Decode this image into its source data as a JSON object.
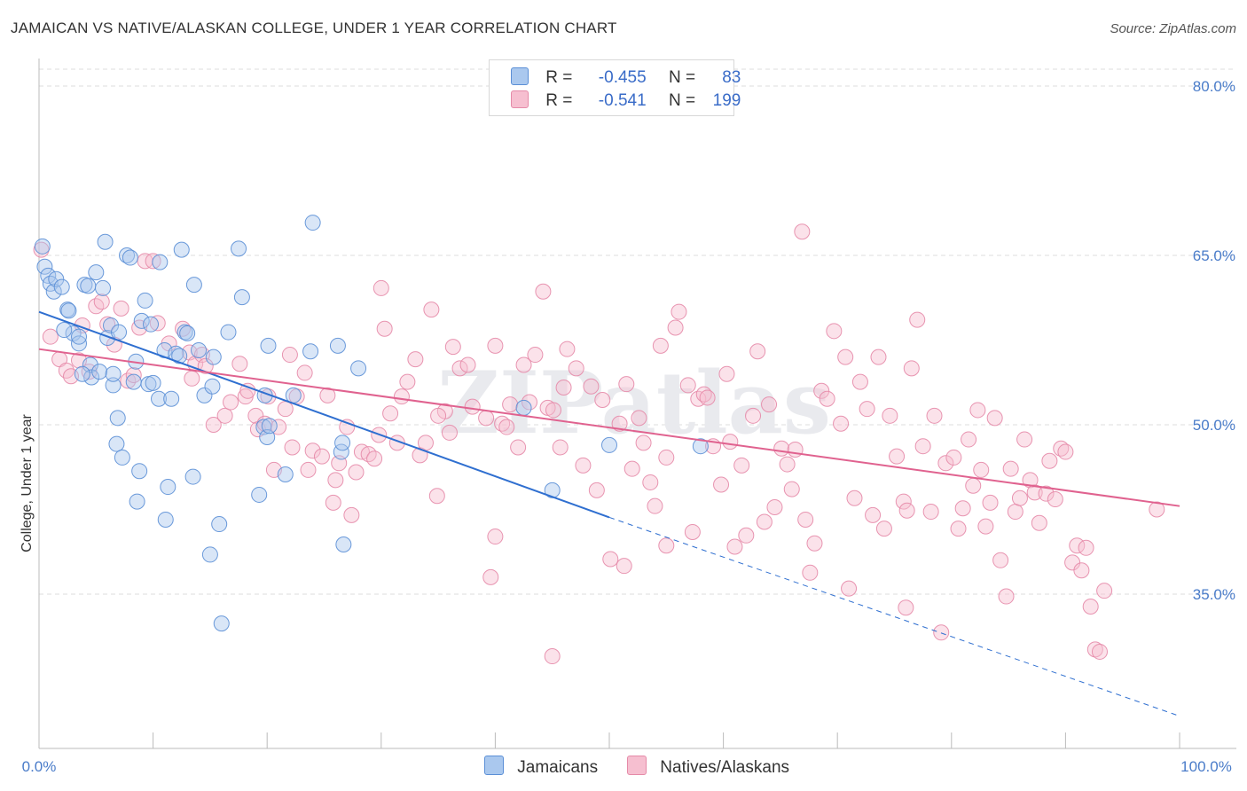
{
  "title": "JAMAICAN VS NATIVE/ALASKAN COLLEGE, UNDER 1 YEAR CORRELATION CHART",
  "source": "Source: ZipAtlas.com",
  "watermark": "ZIPatlas",
  "legend": {
    "rows": [
      {
        "r_label": "R =",
        "r_value": "-0.455",
        "n_label": "N =",
        "n_value": "83",
        "color": "#aac8ee",
        "edge": "#5b8fd6"
      },
      {
        "r_label": "R =",
        "r_value": "-0.541",
        "n_label": "N =",
        "n_value": "199",
        "color": "#f6bfd0",
        "edge": "#e58aa8"
      }
    ]
  },
  "bottom_legend": {
    "items": [
      {
        "label": "Jamaicans",
        "color": "#aac8ee",
        "edge": "#5b8fd6"
      },
      {
        "label": "Natives/Alaskans",
        "color": "#f6bfd0",
        "edge": "#e58aa8"
      }
    ]
  },
  "chart_data": {
    "type": "scatter",
    "title": "JAMAICAN VS NATIVE/ALASKAN COLLEGE, UNDER 1 YEAR CORRELATION CHART",
    "xlabel": "",
    "ylabel": "College, Under 1 year",
    "xlim": [
      0,
      100
    ],
    "ylim": [
      20,
      85
    ],
    "x_tick_labels": [
      "0.0%",
      "100.0%"
    ],
    "y_ticks": [
      35,
      50,
      65,
      80
    ],
    "y_tick_labels": [
      "35.0%",
      "50.0%",
      "65.0%",
      "80.0%"
    ],
    "grid": true,
    "legend_position": "top-center",
    "series": [
      {
        "name": "Jamaicans",
        "color": "#5b8fd6",
        "fill": "#aac8ee",
        "R": -0.455,
        "N": 83,
        "trend": {
          "x0": 0,
          "y0": 60.0,
          "x1": 50,
          "y1": 41.8,
          "dash_to_x": 100,
          "dash_to_y": 24.2
        },
        "points": [
          [
            0.3,
            65.8
          ],
          [
            0.5,
            64.0
          ],
          [
            0.8,
            63.2
          ],
          [
            1.0,
            62.5
          ],
          [
            1.3,
            61.8
          ],
          [
            1.5,
            62.9
          ],
          [
            2.0,
            62.2
          ],
          [
            2.5,
            60.2
          ],
          [
            2.6,
            60.1
          ],
          [
            3.0,
            58.1
          ],
          [
            3.5,
            57.2
          ],
          [
            3.5,
            57.8
          ],
          [
            4.0,
            62.4
          ],
          [
            4.3,
            62.3
          ],
          [
            4.5,
            55.3
          ],
          [
            4.6,
            54.2
          ],
          [
            5.0,
            63.5
          ],
          [
            5.3,
            54.7
          ],
          [
            5.6,
            62.1
          ],
          [
            5.8,
            66.2
          ],
          [
            6.0,
            57.7
          ],
          [
            6.3,
            58.8
          ],
          [
            6.5,
            53.5
          ],
          [
            6.5,
            54.5
          ],
          [
            6.8,
            48.3
          ],
          [
            7.0,
            58.2
          ],
          [
            7.3,
            47.1
          ],
          [
            7.7,
            65.0
          ],
          [
            8.0,
            64.8
          ],
          [
            8.3,
            53.8
          ],
          [
            8.5,
            55.6
          ],
          [
            8.6,
            43.2
          ],
          [
            8.8,
            45.9
          ],
          [
            9.0,
            59.2
          ],
          [
            9.3,
            61.0
          ],
          [
            9.6,
            53.6
          ],
          [
            10.0,
            53.7
          ],
          [
            10.5,
            52.3
          ],
          [
            10.6,
            64.4
          ],
          [
            11.0,
            56.6
          ],
          [
            11.1,
            41.6
          ],
          [
            11.3,
            44.5
          ],
          [
            11.6,
            52.3
          ],
          [
            12.0,
            56.3
          ],
          [
            12.3,
            56.1
          ],
          [
            12.5,
            65.5
          ],
          [
            12.8,
            58.2
          ],
          [
            13.0,
            58.1
          ],
          [
            13.5,
            45.4
          ],
          [
            13.6,
            62.4
          ],
          [
            14.0,
            56.6
          ],
          [
            14.5,
            52.6
          ],
          [
            15.0,
            38.5
          ],
          [
            15.2,
            53.4
          ],
          [
            15.3,
            56.0
          ],
          [
            15.8,
            41.2
          ],
          [
            16.0,
            32.4
          ],
          [
            16.6,
            58.2
          ],
          [
            17.5,
            65.6
          ],
          [
            17.8,
            61.3
          ],
          [
            19.3,
            43.8
          ],
          [
            19.7,
            49.8
          ],
          [
            19.8,
            52.6
          ],
          [
            20.0,
            48.9
          ],
          [
            20.1,
            57.0
          ],
          [
            20.2,
            49.9
          ],
          [
            21.6,
            45.6
          ],
          [
            22.3,
            52.6
          ],
          [
            23.8,
            56.5
          ],
          [
            24.0,
            67.9
          ],
          [
            26.2,
            57.0
          ],
          [
            26.5,
            47.6
          ],
          [
            26.6,
            48.4
          ],
          [
            26.7,
            39.4
          ],
          [
            28.0,
            55.0
          ],
          [
            42.5,
            51.5
          ],
          [
            45.0,
            44.2
          ],
          [
            50.0,
            48.2
          ],
          [
            58.0,
            48.1
          ],
          [
            3.8,
            54.5
          ],
          [
            2.2,
            58.4
          ],
          [
            9.8,
            58.9
          ],
          [
            6.9,
            50.6
          ]
        ]
      },
      {
        "name": "Natives/Alaskans",
        "color": "#e58aa8",
        "fill": "#f6bfd0",
        "R": -0.541,
        "N": 199,
        "trend": {
          "x0": 0,
          "y0": 56.7,
          "x1": 100,
          "y1": 42.8
        },
        "points": [
          [
            0.2,
            65.5
          ],
          [
            1.0,
            57.8
          ],
          [
            1.8,
            55.8
          ],
          [
            2.4,
            54.8
          ],
          [
            2.8,
            54.3
          ],
          [
            3.5,
            55.7
          ],
          [
            3.8,
            58.8
          ],
          [
            4.4,
            54.7
          ],
          [
            5.0,
            60.5
          ],
          [
            5.5,
            60.9
          ],
          [
            6.0,
            58.9
          ],
          [
            6.6,
            57.1
          ],
          [
            7.2,
            60.3
          ],
          [
            7.8,
            53.9
          ],
          [
            8.3,
            54.4
          ],
          [
            8.8,
            58.6
          ],
          [
            9.3,
            64.5
          ],
          [
            10.0,
            64.5
          ],
          [
            10.4,
            59.0
          ],
          [
            11.4,
            57.2
          ],
          [
            12.6,
            58.5
          ],
          [
            13.2,
            56.4
          ],
          [
            13.4,
            54.1
          ],
          [
            13.7,
            55.4
          ],
          [
            14.3,
            56.2
          ],
          [
            14.6,
            55.2
          ],
          [
            15.3,
            50.0
          ],
          [
            16.3,
            50.8
          ],
          [
            16.8,
            52.0
          ],
          [
            17.6,
            55.4
          ],
          [
            18.1,
            52.5
          ],
          [
            18.3,
            53.0
          ],
          [
            19.0,
            50.8
          ],
          [
            19.2,
            49.6
          ],
          [
            19.8,
            50.1
          ],
          [
            20.1,
            52.5
          ],
          [
            20.6,
            46.0
          ],
          [
            21.0,
            49.8
          ],
          [
            21.6,
            51.4
          ],
          [
            22.0,
            56.2
          ],
          [
            22.2,
            48.0
          ],
          [
            22.6,
            52.5
          ],
          [
            23.3,
            54.6
          ],
          [
            23.6,
            46.0
          ],
          [
            24.0,
            47.7
          ],
          [
            24.8,
            47.2
          ],
          [
            25.3,
            52.6
          ],
          [
            25.8,
            43.1
          ],
          [
            26.0,
            45.1
          ],
          [
            26.3,
            46.6
          ],
          [
            27.0,
            49.8
          ],
          [
            27.4,
            42.0
          ],
          [
            27.8,
            45.8
          ],
          [
            28.3,
            47.6
          ],
          [
            28.9,
            47.4
          ],
          [
            29.4,
            47.0
          ],
          [
            29.8,
            49.1
          ],
          [
            30.3,
            58.5
          ],
          [
            30.8,
            51.0
          ],
          [
            31.4,
            48.4
          ],
          [
            31.8,
            52.5
          ],
          [
            32.3,
            53.8
          ],
          [
            33.0,
            55.8
          ],
          [
            33.4,
            47.3
          ],
          [
            33.9,
            48.4
          ],
          [
            34.4,
            60.2
          ],
          [
            34.9,
            43.7
          ],
          [
            35.6,
            51.2
          ],
          [
            36.0,
            49.3
          ],
          [
            36.3,
            56.9
          ],
          [
            36.9,
            55.0
          ],
          [
            37.6,
            55.3
          ],
          [
            38.0,
            51.6
          ],
          [
            39.2,
            50.6
          ],
          [
            39.6,
            36.5
          ],
          [
            40.0,
            57.0
          ],
          [
            40.6,
            50.1
          ],
          [
            41.0,
            49.8
          ],
          [
            41.3,
            51.8
          ],
          [
            42.0,
            48.0
          ],
          [
            42.5,
            55.3
          ],
          [
            43.0,
            52.0
          ],
          [
            43.5,
            56.2
          ],
          [
            44.2,
            61.8
          ],
          [
            44.6,
            51.5
          ],
          [
            45.1,
            51.3
          ],
          [
            45.7,
            48.0
          ],
          [
            46.0,
            53.3
          ],
          [
            46.3,
            56.7
          ],
          [
            47.1,
            55.0
          ],
          [
            47.7,
            46.4
          ],
          [
            48.4,
            53.4
          ],
          [
            48.9,
            44.2
          ],
          [
            49.4,
            52.2
          ],
          [
            50.1,
            38.1
          ],
          [
            50.9,
            50.1
          ],
          [
            51.3,
            37.5
          ],
          [
            51.5,
            53.6
          ],
          [
            52.0,
            46.1
          ],
          [
            52.6,
            50.6
          ],
          [
            53.0,
            48.4
          ],
          [
            53.6,
            44.9
          ],
          [
            54.0,
            42.8
          ],
          [
            54.5,
            57.0
          ],
          [
            55.0,
            47.1
          ],
          [
            55.8,
            58.6
          ],
          [
            56.1,
            60.0
          ],
          [
            56.9,
            53.5
          ],
          [
            57.3,
            40.5
          ],
          [
            57.8,
            52.3
          ],
          [
            58.3,
            52.7
          ],
          [
            58.6,
            52.4
          ],
          [
            59.1,
            48.1
          ],
          [
            59.8,
            44.7
          ],
          [
            60.3,
            54.5
          ],
          [
            60.6,
            48.5
          ],
          [
            61.6,
            46.4
          ],
          [
            62.0,
            40.2
          ],
          [
            62.6,
            50.8
          ],
          [
            63.0,
            56.5
          ],
          [
            63.6,
            41.4
          ],
          [
            64.0,
            51.8
          ],
          [
            64.5,
            42.7
          ],
          [
            65.1,
            47.9
          ],
          [
            65.6,
            46.5
          ],
          [
            66.0,
            44.3
          ],
          [
            66.3,
            47.8
          ],
          [
            67.2,
            41.6
          ],
          [
            67.6,
            36.9
          ],
          [
            68.0,
            39.5
          ],
          [
            68.6,
            53.0
          ],
          [
            69.1,
            52.3
          ],
          [
            69.7,
            58.3
          ],
          [
            70.3,
            50.1
          ],
          [
            70.7,
            56.0
          ],
          [
            71.5,
            43.5
          ],
          [
            72.0,
            53.8
          ],
          [
            72.6,
            51.4
          ],
          [
            73.1,
            42.0
          ],
          [
            73.6,
            56.0
          ],
          [
            74.1,
            40.8
          ],
          [
            74.6,
            50.8
          ],
          [
            75.2,
            47.2
          ],
          [
            75.8,
            43.2
          ],
          [
            76.1,
            42.4
          ],
          [
            76.5,
            55.0
          ],
          [
            77.0,
            59.3
          ],
          [
            77.5,
            48.1
          ],
          [
            78.2,
            42.3
          ],
          [
            78.5,
            50.8
          ],
          [
            79.1,
            31.6
          ],
          [
            79.5,
            46.6
          ],
          [
            80.2,
            47.1
          ],
          [
            80.6,
            40.8
          ],
          [
            81.0,
            42.6
          ],
          [
            81.5,
            48.7
          ],
          [
            81.9,
            44.6
          ],
          [
            82.3,
            51.3
          ],
          [
            82.6,
            46.0
          ],
          [
            83.0,
            41.0
          ],
          [
            83.4,
            43.1
          ],
          [
            83.8,
            50.6
          ],
          [
            84.3,
            38.0
          ],
          [
            84.8,
            34.8
          ],
          [
            85.2,
            46.1
          ],
          [
            85.6,
            42.3
          ],
          [
            86.0,
            43.5
          ],
          [
            86.4,
            48.7
          ],
          [
            86.9,
            45.1
          ],
          [
            87.3,
            44.0
          ],
          [
            87.7,
            41.3
          ],
          [
            88.3,
            43.9
          ],
          [
            88.6,
            46.8
          ],
          [
            89.1,
            43.4
          ],
          [
            89.6,
            47.9
          ],
          [
            90.0,
            47.6
          ],
          [
            90.6,
            37.8
          ],
          [
            91.0,
            39.3
          ],
          [
            91.4,
            37.1
          ],
          [
            91.8,
            39.1
          ],
          [
            92.2,
            33.9
          ],
          [
            92.6,
            30.1
          ],
          [
            93.0,
            29.9
          ],
          [
            93.4,
            35.3
          ],
          [
            66.9,
            67.1
          ],
          [
            61.0,
            39.2
          ],
          [
            76.0,
            33.8
          ],
          [
            71.0,
            35.5
          ],
          [
            45.0,
            29.5
          ],
          [
            30.0,
            62.1
          ],
          [
            40.0,
            40.1
          ],
          [
            35.0,
            50.8
          ],
          [
            55.0,
            39.3
          ],
          [
            98.0,
            42.5
          ]
        ]
      }
    ]
  }
}
